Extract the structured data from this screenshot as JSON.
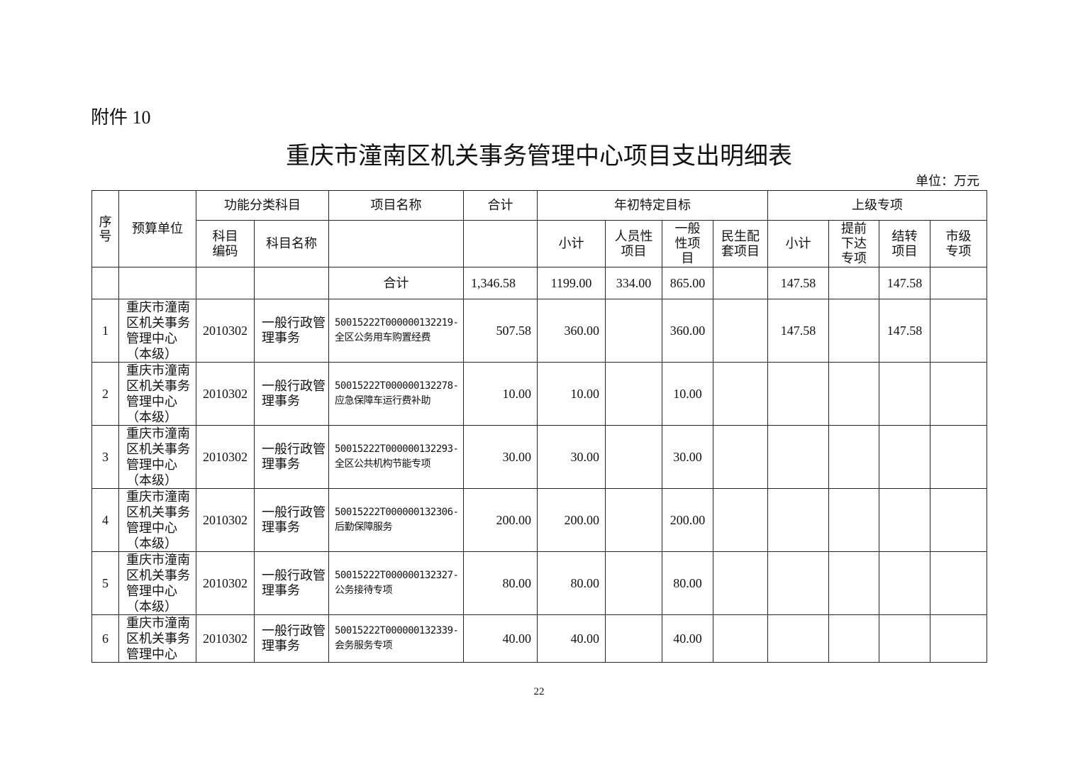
{
  "attachment_label": "附件 10",
  "title": "重庆市潼南区机关事务管理中心项目支出明细表",
  "unit": "单位：万元",
  "headers": {
    "seq": "序号",
    "budget_unit": "预算单位",
    "func_class": "功能分类科目",
    "subject_code": "科目编码",
    "subject_name": "科目名称",
    "project_name": "项目名称",
    "total": "合计",
    "annual_target": "年初特定目标",
    "target_subtotal": "小计",
    "personnel": "人员性项目",
    "general": "一般性项目",
    "livelihood": "民生配套项目",
    "superior": "上级专项",
    "sup_subtotal": "小计",
    "advance": "提前下达专项",
    "carryover": "结转项目",
    "municipal": "市级专项"
  },
  "total_row": {
    "label": "合计",
    "total": "1,346.58",
    "target_subtotal": "1199.00",
    "personnel": "334.00",
    "general": "865.00",
    "livelihood": "",
    "sup_subtotal": "147.58",
    "advance": "",
    "carryover": "147.58",
    "municipal": ""
  },
  "rows": [
    {
      "seq": "1",
      "unit": "重庆市潼南区机关事务管理中心（本级）",
      "code": "2010302",
      "subject": "一般行政管理事务",
      "project": "50015222T000000132219-全区公务用车购置经费",
      "total": "507.58",
      "target_subtotal": "360.00",
      "personnel": "",
      "general": "360.00",
      "livelihood": "",
      "sup_subtotal": "147.58",
      "advance": "",
      "carryover": "147.58",
      "municipal": ""
    },
    {
      "seq": "2",
      "unit": "重庆市潼南区机关事务管理中心（本级）",
      "code": "2010302",
      "subject": "一般行政管理事务",
      "project": "50015222T000000132278-应急保障车运行费补助",
      "total": "10.00",
      "target_subtotal": "10.00",
      "personnel": "",
      "general": "10.00",
      "livelihood": "",
      "sup_subtotal": "",
      "advance": "",
      "carryover": "",
      "municipal": ""
    },
    {
      "seq": "3",
      "unit": "重庆市潼南区机关事务管理中心（本级）",
      "code": "2010302",
      "subject": "一般行政管理事务",
      "project": "50015222T000000132293-全区公共机构节能专项",
      "total": "30.00",
      "target_subtotal": "30.00",
      "personnel": "",
      "general": "30.00",
      "livelihood": "",
      "sup_subtotal": "",
      "advance": "",
      "carryover": "",
      "municipal": ""
    },
    {
      "seq": "4",
      "unit": "重庆市潼南区机关事务管理中心（本级）",
      "code": "2010302",
      "subject": "一般行政管理事务",
      "project": "50015222T000000132306-后勤保障服务",
      "total": "200.00",
      "target_subtotal": "200.00",
      "personnel": "",
      "general": "200.00",
      "livelihood": "",
      "sup_subtotal": "",
      "advance": "",
      "carryover": "",
      "municipal": ""
    },
    {
      "seq": "5",
      "unit": "重庆市潼南区机关事务管理中心（本级）",
      "code": "2010302",
      "subject": "一般行政管理事务",
      "project": "50015222T000000132327-公务接待专项",
      "total": "80.00",
      "target_subtotal": "80.00",
      "personnel": "",
      "general": "80.00",
      "livelihood": "",
      "sup_subtotal": "",
      "advance": "",
      "carryover": "",
      "municipal": ""
    },
    {
      "seq": "6",
      "unit": "重庆市潼南区机关事务管理中心",
      "code": "2010302",
      "subject": "一般行政管理事务",
      "project": "50015222T000000132339-会务服务专项",
      "total": "40.00",
      "target_subtotal": "40.00",
      "personnel": "",
      "general": "40.00",
      "livelihood": "",
      "sup_subtotal": "",
      "advance": "",
      "carryover": "",
      "municipal": ""
    }
  ],
  "page_number": "22"
}
